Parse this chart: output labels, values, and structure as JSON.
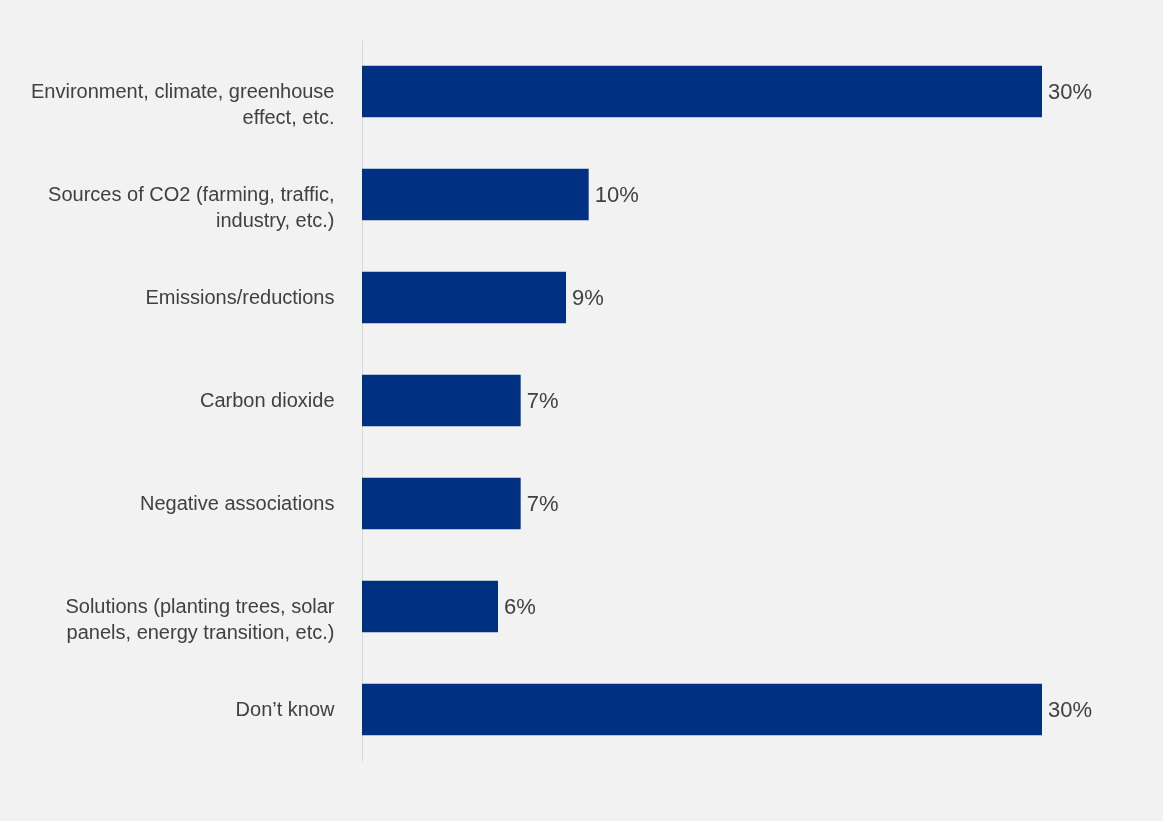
{
  "chart_data": {
    "type": "bar",
    "orientation": "horizontal",
    "categories": [
      "Environment, climate, greenhouse effect, etc.",
      "Sources of CO2 (farming, traffic, industry, etc.)",
      "Emissions/reductions",
      "Carbon dioxide",
      "Negative associations",
      "Solutions (planting trees, solar panels, energy transition, etc.)",
      "Don’t know"
    ],
    "values": [
      30,
      10,
      9,
      7,
      7,
      6,
      30
    ],
    "value_labels": [
      "30%",
      "10%",
      "9%",
      "7%",
      "7%",
      "6%",
      "30%"
    ],
    "color": "#003082",
    "tick_labels": "y"
  }
}
